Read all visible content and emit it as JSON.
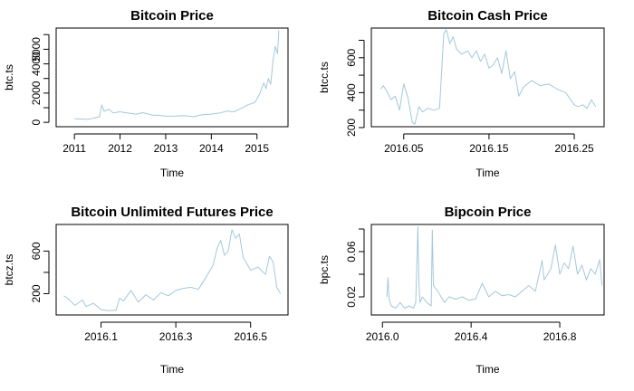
{
  "chart_data": [
    {
      "type": "line",
      "title": "Bitcoin Price",
      "xlabel": "Time",
      "ylabel": "btc.ts",
      "color": "#a3c8dc",
      "xlim": [
        2010.6,
        2015.68
      ],
      "ylim": [
        -300,
        6450
      ],
      "xticks": [
        2011,
        2012,
        2013,
        2014,
        2015
      ],
      "xtick_labels": [
        "2011",
        "2012",
        "2013",
        "2014",
        "2015"
      ],
      "yticks": [
        0,
        1000,
        2000,
        3000,
        4000,
        5000,
        6000
      ],
      "ytick_labels": [
        "0",
        "",
        "2000",
        "",
        "4000",
        "5000",
        ""
      ],
      "x": [
        2011.0,
        2011.3,
        2011.55,
        2011.6,
        2011.65,
        2011.75,
        2011.85,
        2012.0,
        2012.2,
        2012.35,
        2012.5,
        2012.7,
        2012.85,
        2013.0,
        2013.2,
        2013.4,
        2013.6,
        2013.8,
        2014.0,
        2014.2,
        2014.35,
        2014.5,
        2014.65,
        2014.8,
        2014.95,
        2015.05,
        2015.15,
        2015.2,
        2015.25,
        2015.3,
        2015.35,
        2015.4,
        2015.45,
        2015.48
      ],
      "y": [
        250,
        200,
        380,
        1200,
        750,
        900,
        650,
        720,
        620,
        560,
        660,
        500,
        480,
        420,
        430,
        460,
        380,
        520,
        560,
        650,
        780,
        720,
        950,
        1200,
        1350,
        1900,
        2700,
        2300,
        3000,
        2600,
        4200,
        5200,
        4700,
        6300
      ]
    },
    {
      "type": "line",
      "title": "Bitcoin Cash Price",
      "xlabel": "Time",
      "ylabel": "btcc.ts",
      "color": "#a3c8dc",
      "xlim": [
        2016.012,
        2016.285
      ],
      "ylim": [
        205,
        770
      ],
      "xticks": [
        2016.05,
        2016.15,
        2016.25
      ],
      "xtick_labels": [
        "2016.05",
        "2016.15",
        "2016.25"
      ],
      "yticks": [
        200,
        300,
        400,
        500,
        600,
        700
      ],
      "ytick_labels": [
        "200",
        "",
        "400",
        "",
        "600",
        ""
      ],
      "x": [
        2016.023,
        2016.026,
        2016.03,
        2016.035,
        2016.04,
        2016.045,
        2016.05,
        2016.055,
        2016.06,
        2016.063,
        2016.068,
        2016.072,
        2016.078,
        2016.085,
        2016.092,
        2016.097,
        2016.1,
        2016.104,
        2016.108,
        2016.112,
        2016.118,
        2016.125,
        2016.13,
        2016.135,
        2016.14,
        2016.145,
        2016.15,
        2016.155,
        2016.16,
        2016.165,
        2016.17,
        2016.175,
        2016.18,
        2016.185,
        2016.19,
        2016.2,
        2016.21,
        2016.22,
        2016.23,
        2016.24,
        2016.25,
        2016.255,
        2016.26,
        2016.265,
        2016.27,
        2016.275
      ],
      "y": [
        420,
        440,
        410,
        360,
        380,
        300,
        450,
        370,
        230,
        220,
        320,
        290,
        310,
        300,
        310,
        740,
        760,
        680,
        720,
        650,
        620,
        640,
        600,
        640,
        580,
        620,
        540,
        560,
        600,
        510,
        640,
        480,
        520,
        380,
        430,
        470,
        440,
        450,
        420,
        400,
        330,
        320,
        330,
        310,
        360,
        320
      ]
    },
    {
      "type": "line",
      "title": "Bitcoin Unlimited Futures Price",
      "xlabel": "Time",
      "ylabel": "btcz.ts",
      "color": "#a3c8dc",
      "xlim": [
        2015.98,
        2016.6
      ],
      "ylim": [
        0,
        850
      ],
      "xticks": [
        2016.1,
        2016.3,
        2016.5
      ],
      "xtick_labels": [
        "2016.1",
        "2016.3",
        "2016.5"
      ],
      "yticks": [
        200,
        400,
        600
      ],
      "ytick_labels": [
        "200",
        "",
        "600"
      ],
      "x": [
        2016.0,
        2016.01,
        2016.03,
        2016.05,
        2016.06,
        2016.08,
        2016.1,
        2016.12,
        2016.14,
        2016.15,
        2016.16,
        2016.18,
        2016.2,
        2016.22,
        2016.24,
        2016.26,
        2016.28,
        2016.3,
        2016.32,
        2016.34,
        2016.36,
        2016.38,
        2016.4,
        2016.41,
        2016.42,
        2016.43,
        2016.44,
        2016.45,
        2016.46,
        2016.47,
        2016.48,
        2016.49,
        2016.5,
        2016.52,
        2016.54,
        2016.55,
        2016.56,
        2016.57,
        2016.58
      ],
      "y": [
        180,
        160,
        90,
        140,
        80,
        110,
        50,
        40,
        45,
        160,
        130,
        230,
        120,
        190,
        140,
        210,
        180,
        230,
        250,
        260,
        240,
        350,
        470,
        620,
        700,
        560,
        600,
        800,
        720,
        760,
        540,
        480,
        420,
        450,
        380,
        550,
        500,
        260,
        200
      ]
    },
    {
      "type": "line",
      "title": "Bipcoin Price",
      "xlabel": "Time",
      "ylabel": "bpc.ts",
      "color": "#a3c8dc",
      "xlim": [
        2015.95,
        2017.0
      ],
      "ylim": [
        0.004,
        0.084
      ],
      "xticks": [
        2016.0,
        2016.4,
        2016.8
      ],
      "xtick_labels": [
        "2016.0",
        "2016.4",
        "2016.8"
      ],
      "yticks": [
        0.02,
        0.04,
        0.06,
        0.08
      ],
      "ytick_labels": [
        "0.02",
        "",
        "0.06",
        ""
      ],
      "x": [
        2016.02,
        2016.025,
        2016.03,
        2016.04,
        2016.06,
        2016.08,
        2016.1,
        2016.12,
        2016.14,
        2016.15,
        2016.16,
        2016.165,
        2016.17,
        2016.18,
        2016.2,
        2016.22,
        2016.225,
        2016.23,
        2016.25,
        2016.28,
        2016.3,
        2016.33,
        2016.36,
        2016.39,
        2016.42,
        2016.45,
        2016.48,
        2016.51,
        2016.54,
        2016.57,
        2016.6,
        2016.63,
        2016.66,
        2016.69,
        2016.72,
        2016.73,
        2016.76,
        2016.78,
        2016.8,
        2016.82,
        2016.84,
        2016.86,
        2016.88,
        2016.9,
        2016.92,
        2016.94,
        2016.96,
        2016.98,
        2016.99
      ],
      "y": [
        0.02,
        0.037,
        0.018,
        0.012,
        0.01,
        0.015,
        0.01,
        0.012,
        0.01,
        0.015,
        0.082,
        0.03,
        0.015,
        0.02,
        0.015,
        0.012,
        0.079,
        0.03,
        0.025,
        0.015,
        0.02,
        0.018,
        0.02,
        0.017,
        0.018,
        0.032,
        0.02,
        0.025,
        0.021,
        0.022,
        0.02,
        0.025,
        0.03,
        0.025,
        0.052,
        0.035,
        0.045,
        0.066,
        0.04,
        0.05,
        0.045,
        0.065,
        0.04,
        0.048,
        0.035,
        0.045,
        0.04,
        0.053,
        0.03
      ]
    }
  ]
}
